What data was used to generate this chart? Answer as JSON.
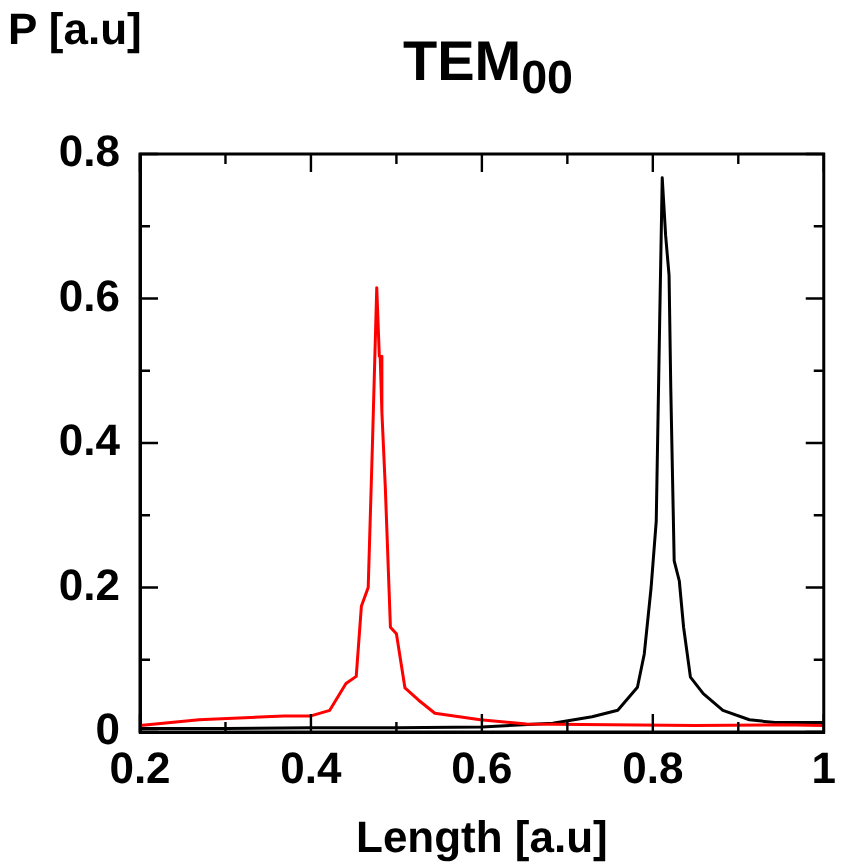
{
  "chart_data": {
    "type": "line",
    "title": "TEM$_{00}$",
    "xlabel": "Length [a.u]",
    "ylabel": "P [a.u]",
    "xlim": [
      0.2,
      1
    ],
    "xticks": [
      0.2,
      {
        "value": 0.3,
        "label": null
      },
      0.4,
      {
        "value": 0.5,
        "label": null
      },
      0.6,
      {
        "value": 0.7,
        "label": null
      },
      0.8,
      {
        "value": 0.9,
        "label": null
      },
      1
    ],
    "ylim": [
      0,
      0.8
    ],
    "yticks": [
      0,
      {
        "value": 0.1,
        "label": null
      },
      0.2,
      {
        "value": 0.3,
        "label": null
      },
      0.4,
      {
        "value": 0.5,
        "label": null
      },
      0.6,
      {
        "value": 0.7,
        "label": null
      },
      0.8
    ],
    "grid": false,
    "legend": false,
    "marker": "none",
    "line_style": "solid",
    "series": [
      {
        "color": "#ff0000",
        "x": [
          0.2,
          0.269,
          0.368,
          0.399,
          0.422,
          0.441,
          0.453,
          0.459,
          0.467,
          0.472,
          0.477,
          0.48,
          0.481,
          0.483,
          0.487,
          0.493,
          0.5,
          0.51,
          0.526,
          0.545,
          0.598,
          0.652,
          0.75,
          0.85,
          0.95,
          1
        ],
        "values": [
          0.009,
          0.017,
          0.022,
          0.022,
          0.03,
          0.067,
          0.077,
          0.174,
          0.2,
          0.4,
          0.615,
          0.52,
          0.52,
          0.443,
          0.339,
          0.145,
          0.136,
          0.061,
          0.044,
          0.026,
          0.017,
          0.011,
          0.01,
          0.009,
          0.01,
          0.009
        ]
      },
      {
        "color": "#000000",
        "x": [
          0.2,
          0.3,
          0.4,
          0.5,
          0.6,
          0.683,
          0.729,
          0.759,
          0.782,
          0.79,
          0.798,
          0.804,
          0.808,
          0.811,
          0.815,
          0.819,
          0.821,
          0.825,
          0.831,
          0.836,
          0.844,
          0.859,
          0.882,
          0.913,
          0.943,
          0.982,
          1
        ],
        "values": [
          0.005,
          0.005,
          0.006,
          0.006,
          0.007,
          0.012,
          0.021,
          0.03,
          0.062,
          0.108,
          0.2,
          0.292,
          0.567,
          0.767,
          0.687,
          0.632,
          0.476,
          0.237,
          0.209,
          0.145,
          0.076,
          0.053,
          0.03,
          0.017,
          0.013,
          0.013,
          0.013
        ]
      }
    ]
  }
}
